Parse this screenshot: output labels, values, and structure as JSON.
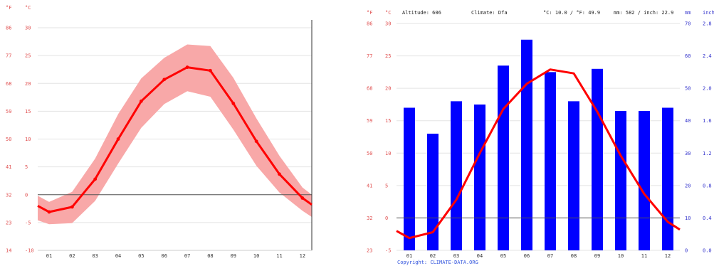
{
  "chart_data": [
    {
      "type": "area",
      "title": "",
      "y_units": [
        "°F",
        "°C"
      ],
      "ylim_c": [
        -10,
        30
      ],
      "ylim_f": [
        14,
        86
      ],
      "c_ticks": [
        30,
        25,
        20,
        15,
        10,
        5,
        0,
        -5,
        -10
      ],
      "f_ticks": [
        86,
        77,
        68,
        59,
        50,
        41,
        32,
        23,
        14
      ],
      "months": [
        "01",
        "02",
        "03",
        "04",
        "05",
        "06",
        "07",
        "08",
        "09",
        "10",
        "11",
        "12"
      ],
      "x": [
        0.5,
        1,
        2,
        3,
        4,
        5,
        6,
        7,
        8,
        9,
        10,
        11,
        12,
        12.5
      ],
      "mean_c": [
        -2.0,
        -3.1,
        -2.2,
        2.8,
        10.0,
        16.8,
        20.7,
        22.9,
        22.3,
        16.4,
        9.6,
        3.7,
        -0.6,
        -1.8
      ],
      "max_c": [
        -0.2,
        -1.3,
        0.5,
        6.5,
        14.5,
        20.9,
        24.6,
        27.0,
        26.7,
        21.0,
        13.7,
        7.0,
        1.3,
        0.0
      ],
      "min_c": [
        -4.6,
        -5.3,
        -5.1,
        -1.1,
        5.6,
        12.0,
        16.3,
        18.6,
        17.6,
        11.7,
        5.2,
        0.4,
        -2.9,
        -4.0
      ],
      "colors": {
        "band": "#f8a8a8",
        "line": "#ff0000",
        "zero": "#555555"
      }
    },
    {
      "type": "bar",
      "header": {
        "altitude": "Altitude: 606",
        "climate": "Climate: Dfa",
        "temp": "°C: 10.0 / °F: 49.9",
        "precip": "mm: 582 / inch: 22.9"
      },
      "y_units_left": [
        "°F",
        "°C"
      ],
      "y_units_right": [
        "mm",
        "inch"
      ],
      "c_ticks": [
        30,
        25,
        20,
        15,
        10,
        5,
        0,
        -5
      ],
      "f_ticks": [
        86,
        77,
        68,
        59,
        50,
        41,
        32,
        23
      ],
      "mm_ticks": [
        70,
        60,
        50,
        40,
        30,
        20,
        10,
        0
      ],
      "inch_ticks": [
        "2.8",
        "2.4",
        "2.0",
        "1.6",
        "1.2",
        "0.8",
        "0.4",
        "0.0"
      ],
      "months": [
        "01",
        "02",
        "03",
        "04",
        "05",
        "06",
        "07",
        "08",
        "09",
        "10",
        "11",
        "12"
      ],
      "precip_mm": [
        44,
        36,
        46,
        45,
        57,
        65,
        55,
        46,
        56,
        43,
        43,
        44
      ],
      "temp_x": [
        0.5,
        1,
        2,
        3,
        4,
        5,
        6,
        7,
        8,
        9,
        10,
        11,
        12,
        12.5
      ],
      "temp_c": [
        -2.0,
        -3.1,
        -2.2,
        2.8,
        10.0,
        16.8,
        20.7,
        22.9,
        22.3,
        16.4,
        9.6,
        3.7,
        -0.6,
        -1.8
      ],
      "ylim_c": [
        -5,
        30
      ],
      "ylim_mm": [
        0,
        70
      ],
      "footer": "Copyright: CLIMATE-DATA.ORG",
      "colors": {
        "bar": "#0000ff",
        "line": "#ff0000",
        "zero": "#555555",
        "left_axis": "#e05050",
        "right_axis": "#3333cc",
        "footer": "#3355dd"
      }
    }
  ]
}
